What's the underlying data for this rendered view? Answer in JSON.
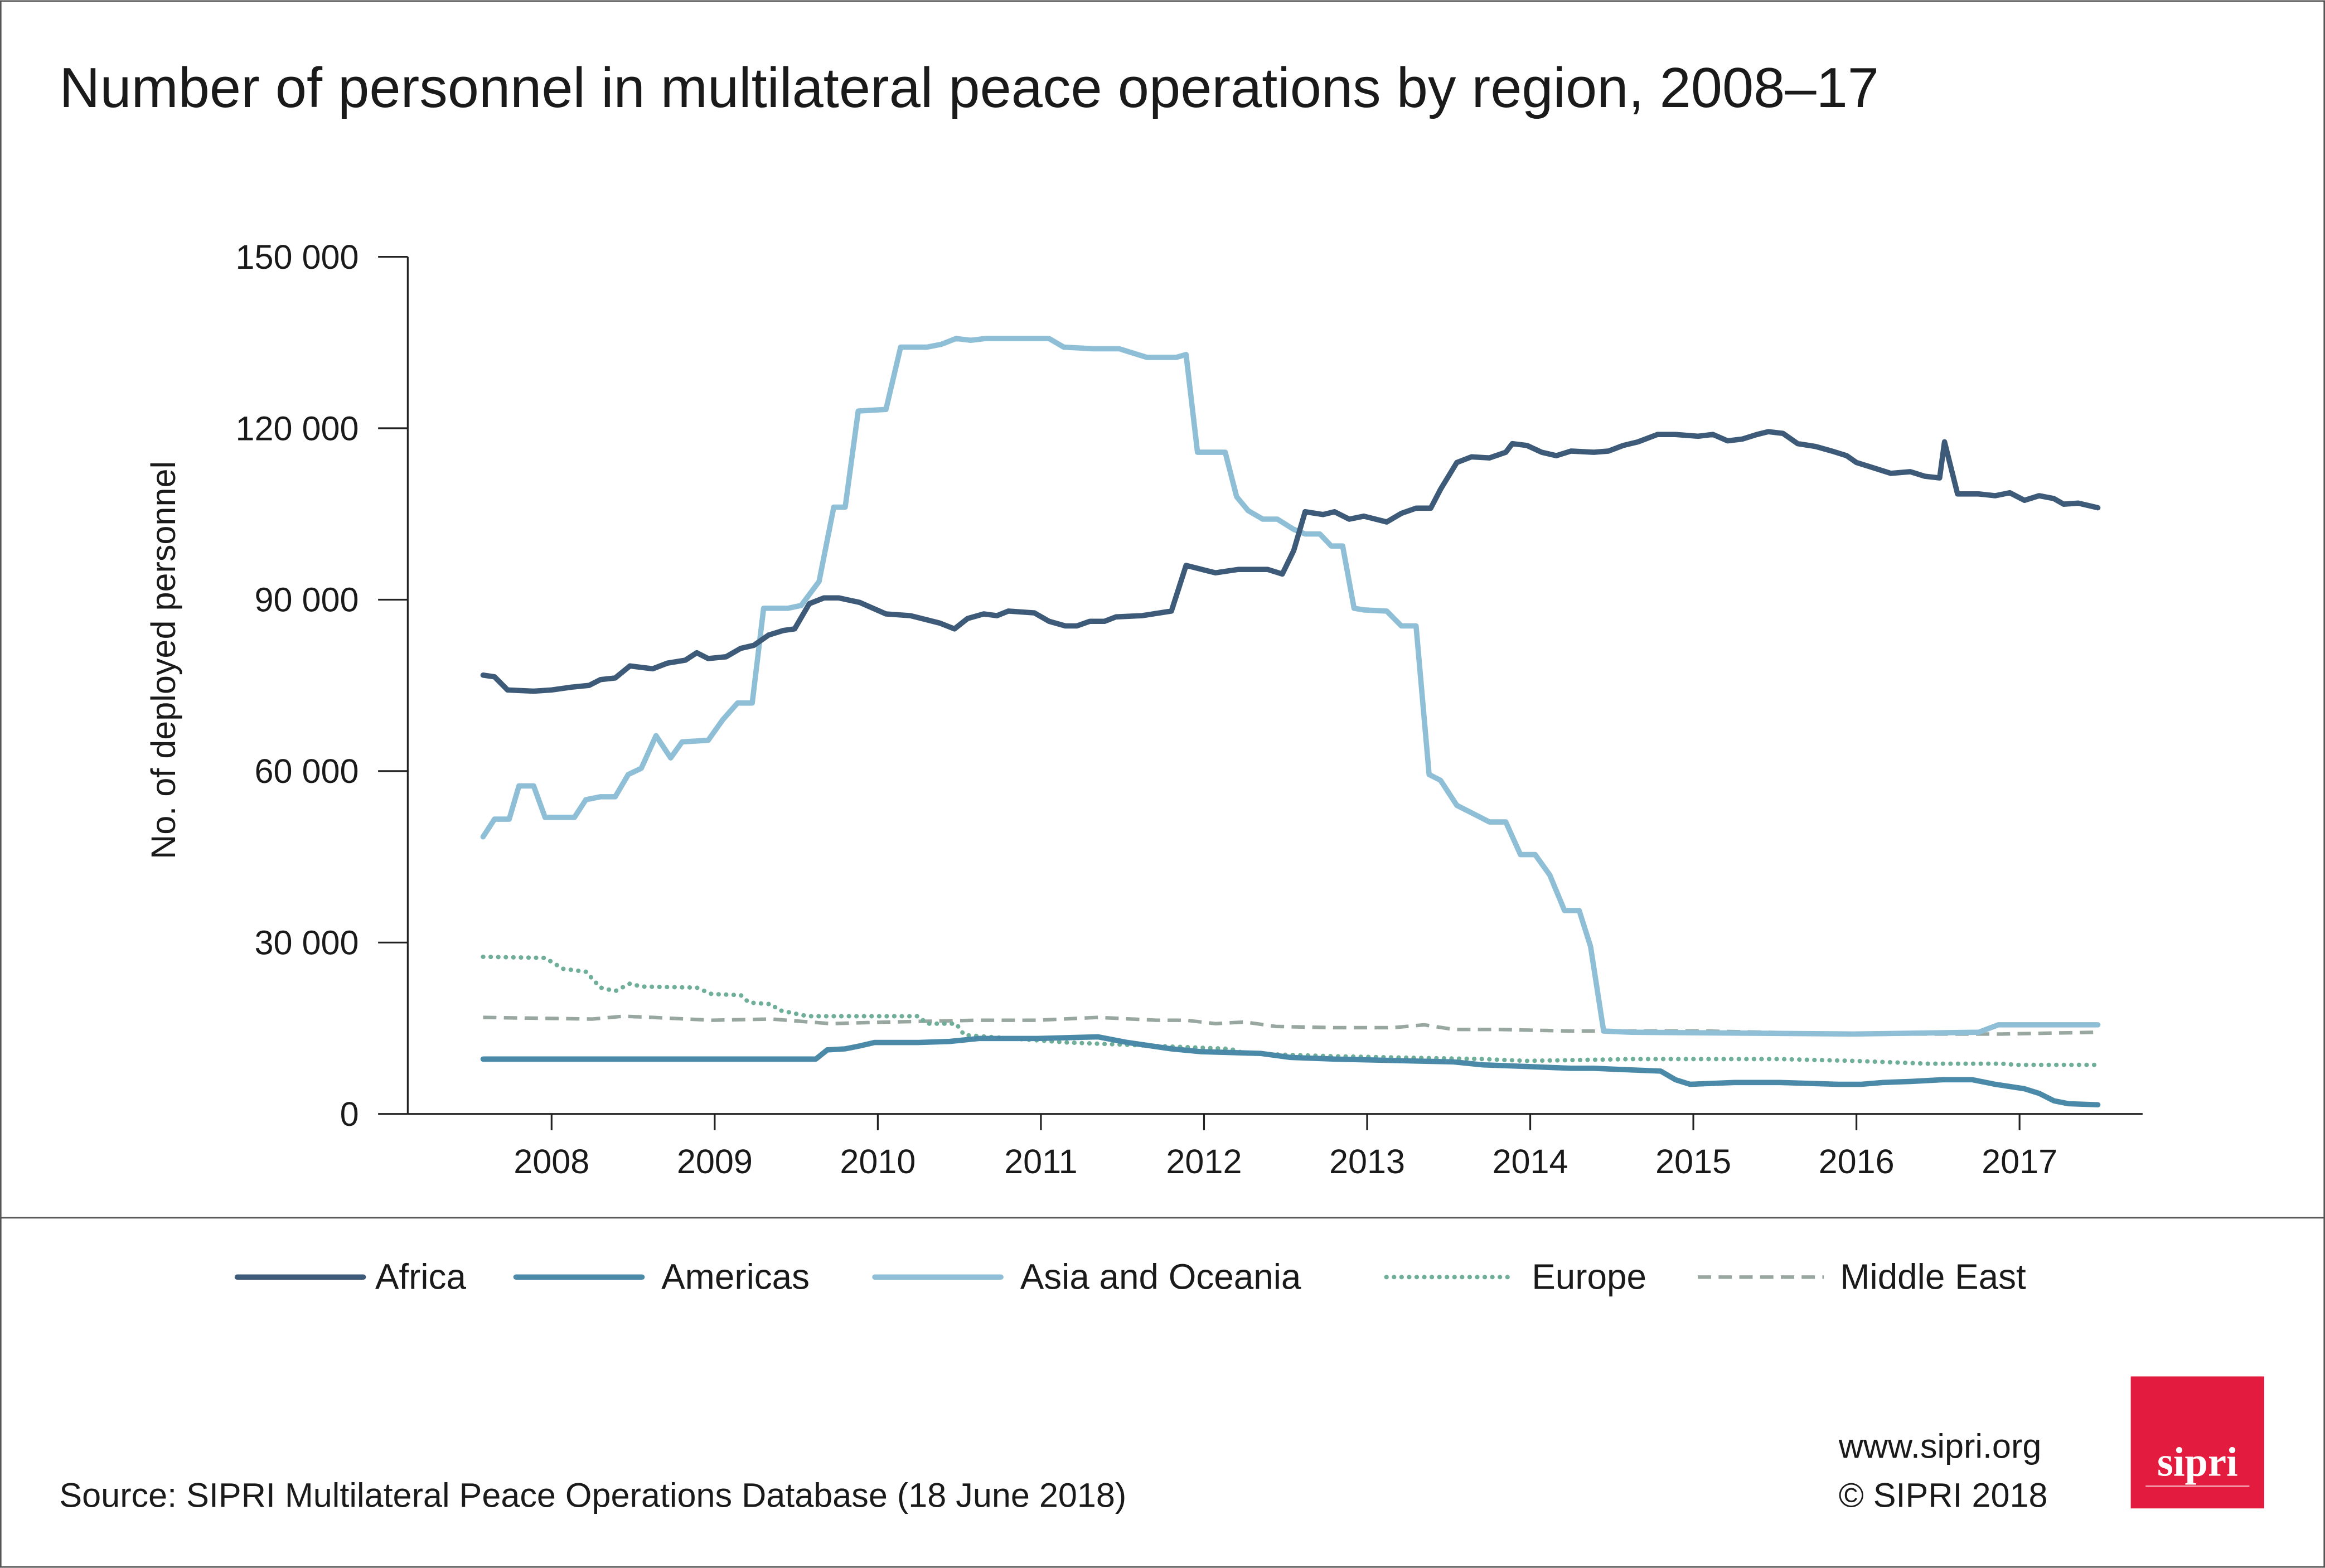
{
  "chart_data": {
    "type": "line",
    "title": "Number of personnel in multilateral peace operations by region, 2008–17",
    "xlabel": "",
    "ylabel": "No. of deployed personnel",
    "ylim": [
      0,
      150000
    ],
    "yticks": [
      0,
      30000,
      60000,
      90000,
      120000,
      150000
    ],
    "ytick_labels": [
      "0",
      "30 000",
      "60 000",
      "90 000",
      "120 000",
      "150 000"
    ],
    "xlim": [
      2007.55,
      2017.75
    ],
    "xticks": [
      2008,
      2009,
      2010,
      2011,
      2012,
      2013,
      2014,
      2015,
      2016,
      2017
    ],
    "xtick_labels": [
      "2008",
      "2009",
      "2010",
      "2011",
      "2012",
      "2013",
      "2014",
      "2015",
      "2016",
      "2017"
    ],
    "grid": false,
    "legend_placement": "bottom",
    "series": [
      {
        "name": "Africa",
        "color": "#3d5a78",
        "style": "solid",
        "points": [
          [
            2007.58,
            76800
          ],
          [
            2007.65,
            76500
          ],
          [
            2007.73,
            74200
          ],
          [
            2007.89,
            74000
          ],
          [
            2008.0,
            74200
          ],
          [
            2008.12,
            74700
          ],
          [
            2008.23,
            75000
          ],
          [
            2008.3,
            76000
          ],
          [
            2008.39,
            76300
          ],
          [
            2008.48,
            78400
          ],
          [
            2008.62,
            77900
          ],
          [
            2008.71,
            78900
          ],
          [
            2008.82,
            79400
          ],
          [
            2008.89,
            80700
          ],
          [
            2008.96,
            79700
          ],
          [
            2009.07,
            80000
          ],
          [
            2009.16,
            81500
          ],
          [
            2009.24,
            82000
          ],
          [
            2009.33,
            83800
          ],
          [
            2009.42,
            84600
          ],
          [
            2009.49,
            84900
          ],
          [
            2009.58,
            89300
          ],
          [
            2009.67,
            90300
          ],
          [
            2009.76,
            90300
          ],
          [
            2009.89,
            89500
          ],
          [
            2010.05,
            87500
          ],
          [
            2010.2,
            87200
          ],
          [
            2010.38,
            85900
          ],
          [
            2010.47,
            84900
          ],
          [
            2010.55,
            86700
          ],
          [
            2010.65,
            87500
          ],
          [
            2010.73,
            87200
          ],
          [
            2010.8,
            88000
          ],
          [
            2010.96,
            87700
          ],
          [
            2011.05,
            86200
          ],
          [
            2011.15,
            85400
          ],
          [
            2011.22,
            85400
          ],
          [
            2011.3,
            86200
          ],
          [
            2011.39,
            86200
          ],
          [
            2011.46,
            87000
          ],
          [
            2011.62,
            87200
          ],
          [
            2011.8,
            88000
          ],
          [
            2011.89,
            96000
          ],
          [
            2012.07,
            94700
          ],
          [
            2012.21,
            95300
          ],
          [
            2012.39,
            95300
          ],
          [
            2012.48,
            94500
          ],
          [
            2012.55,
            98600
          ],
          [
            2012.62,
            105400
          ],
          [
            2012.73,
            104900
          ],
          [
            2012.8,
            105400
          ],
          [
            2012.89,
            104100
          ],
          [
            2012.98,
            104600
          ],
          [
            2013.12,
            103600
          ],
          [
            2013.21,
            105100
          ],
          [
            2013.3,
            106000
          ],
          [
            2013.39,
            106000
          ],
          [
            2013.45,
            109300
          ],
          [
            2013.55,
            114000
          ],
          [
            2013.64,
            115000
          ],
          [
            2013.75,
            114800
          ],
          [
            2013.85,
            115800
          ],
          [
            2013.89,
            117300
          ],
          [
            2013.98,
            117000
          ],
          [
            2014.07,
            115800
          ],
          [
            2014.16,
            115200
          ],
          [
            2014.25,
            116000
          ],
          [
            2014.39,
            115800
          ],
          [
            2014.48,
            116000
          ],
          [
            2014.57,
            117000
          ],
          [
            2014.66,
            117600
          ],
          [
            2014.78,
            118900
          ],
          [
            2014.89,
            118900
          ],
          [
            2015.03,
            118600
          ],
          [
            2015.12,
            118900
          ],
          [
            2015.21,
            117800
          ],
          [
            2015.3,
            118100
          ],
          [
            2015.39,
            118900
          ],
          [
            2015.46,
            119400
          ],
          [
            2015.55,
            119100
          ],
          [
            2015.64,
            117300
          ],
          [
            2015.75,
            116800
          ],
          [
            2015.85,
            116000
          ],
          [
            2015.94,
            115200
          ],
          [
            2016.0,
            114000
          ],
          [
            2016.09,
            113200
          ],
          [
            2016.21,
            112100
          ],
          [
            2016.33,
            112400
          ],
          [
            2016.42,
            111600
          ],
          [
            2016.51,
            111300
          ],
          [
            2016.54,
            117600
          ],
          [
            2016.62,
            108500
          ],
          [
            2016.75,
            108500
          ],
          [
            2016.85,
            108200
          ],
          [
            2016.94,
            108700
          ],
          [
            2017.03,
            107400
          ],
          [
            2017.12,
            108200
          ],
          [
            2017.21,
            107700
          ],
          [
            2017.27,
            106700
          ],
          [
            2017.36,
            106900
          ],
          [
            2017.48,
            106100
          ]
        ]
      },
      {
        "name": "Americas",
        "color": "#4a8aa8",
        "style": "solid",
        "points": [
          [
            2007.58,
            9600
          ],
          [
            2009.62,
            9600
          ],
          [
            2009.69,
            11200
          ],
          [
            2009.8,
            11400
          ],
          [
            2009.89,
            11900
          ],
          [
            2009.98,
            12500
          ],
          [
            2010.07,
            12500
          ],
          [
            2010.25,
            12500
          ],
          [
            2010.44,
            12700
          ],
          [
            2010.62,
            13200
          ],
          [
            2010.98,
            13200
          ],
          [
            2011.35,
            13500
          ],
          [
            2011.53,
            12500
          ],
          [
            2011.8,
            11400
          ],
          [
            2011.98,
            10900
          ],
          [
            2012.35,
            10600
          ],
          [
            2012.53,
            9900
          ],
          [
            2012.8,
            9600
          ],
          [
            2013.25,
            9300
          ],
          [
            2013.53,
            9100
          ],
          [
            2013.71,
            8600
          ],
          [
            2013.98,
            8300
          ],
          [
            2014.25,
            8000
          ],
          [
            2014.39,
            8000
          ],
          [
            2014.53,
            7800
          ],
          [
            2014.8,
            7500
          ],
          [
            2014.89,
            6000
          ],
          [
            2014.98,
            5200
          ],
          [
            2015.25,
            5500
          ],
          [
            2015.53,
            5500
          ],
          [
            2015.89,
            5200
          ],
          [
            2016.03,
            5200
          ],
          [
            2016.16,
            5500
          ],
          [
            2016.35,
            5700
          ],
          [
            2016.53,
            6000
          ],
          [
            2016.71,
            6000
          ],
          [
            2016.85,
            5200
          ],
          [
            2017.03,
            4400
          ],
          [
            2017.12,
            3600
          ],
          [
            2017.21,
            2300
          ],
          [
            2017.3,
            1800
          ],
          [
            2017.48,
            1600
          ]
        ]
      },
      {
        "name": "Asia and Oceania",
        "color": "#8fbfd6",
        "style": "solid",
        "points": [
          [
            2007.58,
            48500
          ],
          [
            2007.65,
            51600
          ],
          [
            2007.74,
            51600
          ],
          [
            2007.8,
            57400
          ],
          [
            2007.89,
            57400
          ],
          [
            2007.96,
            51900
          ],
          [
            2008.14,
            51900
          ],
          [
            2008.21,
            55000
          ],
          [
            2008.3,
            55500
          ],
          [
            2008.39,
            55500
          ],
          [
            2008.47,
            59400
          ],
          [
            2008.55,
            60500
          ],
          [
            2008.64,
            66200
          ],
          [
            2008.73,
            62300
          ],
          [
            2008.8,
            65100
          ],
          [
            2008.96,
            65400
          ],
          [
            2009.05,
            69000
          ],
          [
            2009.14,
            71900
          ],
          [
            2009.23,
            71900
          ],
          [
            2009.3,
            88500
          ],
          [
            2009.45,
            88500
          ],
          [
            2009.53,
            89000
          ],
          [
            2009.64,
            93200
          ],
          [
            2009.73,
            106200
          ],
          [
            2009.8,
            106200
          ],
          [
            2009.88,
            123000
          ],
          [
            2010.05,
            123300
          ],
          [
            2010.14,
            134200
          ],
          [
            2010.3,
            134200
          ],
          [
            2010.39,
            134700
          ],
          [
            2010.48,
            135700
          ],
          [
            2010.57,
            135400
          ],
          [
            2010.66,
            135700
          ],
          [
            2010.98,
            135700
          ],
          [
            2011.05,
            135700
          ],
          [
            2011.14,
            134200
          ],
          [
            2011.32,
            133900
          ],
          [
            2011.48,
            133900
          ],
          [
            2011.57,
            133100
          ],
          [
            2011.65,
            132400
          ],
          [
            2011.83,
            132400
          ],
          [
            2011.89,
            132900
          ],
          [
            2011.96,
            115800
          ],
          [
            2012.13,
            115800
          ],
          [
            2012.2,
            108000
          ],
          [
            2012.27,
            105600
          ],
          [
            2012.36,
            104100
          ],
          [
            2012.45,
            104100
          ],
          [
            2012.55,
            102300
          ],
          [
            2012.62,
            101500
          ],
          [
            2012.71,
            101500
          ],
          [
            2012.78,
            99400
          ],
          [
            2012.85,
            99400
          ],
          [
            2012.92,
            88500
          ],
          [
            2012.98,
            88200
          ],
          [
            2013.12,
            88000
          ],
          [
            2013.21,
            85400
          ],
          [
            2013.3,
            85400
          ],
          [
            2013.38,
            59400
          ],
          [
            2013.45,
            58400
          ],
          [
            2013.55,
            54000
          ],
          [
            2013.64,
            52700
          ],
          [
            2013.75,
            51100
          ],
          [
            2013.85,
            51100
          ],
          [
            2013.94,
            45400
          ],
          [
            2014.03,
            45400
          ],
          [
            2014.12,
            41800
          ],
          [
            2014.21,
            35600
          ],
          [
            2014.3,
            35600
          ],
          [
            2014.37,
            29300
          ],
          [
            2014.45,
            14500
          ],
          [
            2014.62,
            14300
          ],
          [
            2015.98,
            14000
          ],
          [
            2016.75,
            14300
          ],
          [
            2016.87,
            15600
          ],
          [
            2017.48,
            15600
          ]
        ]
      },
      {
        "name": "Europe",
        "color": "#6fae98",
        "style": "dotted",
        "points": [
          [
            2007.58,
            27500
          ],
          [
            2007.96,
            27300
          ],
          [
            2008.07,
            25400
          ],
          [
            2008.21,
            24900
          ],
          [
            2008.3,
            22100
          ],
          [
            2008.39,
            21500
          ],
          [
            2008.48,
            22800
          ],
          [
            2008.55,
            22300
          ],
          [
            2008.89,
            22100
          ],
          [
            2008.98,
            21000
          ],
          [
            2009.16,
            20800
          ],
          [
            2009.21,
            19500
          ],
          [
            2009.35,
            19200
          ],
          [
            2009.39,
            18200
          ],
          [
            2009.57,
            17100
          ],
          [
            2010.25,
            17100
          ],
          [
            2010.3,
            15800
          ],
          [
            2010.48,
            15800
          ],
          [
            2010.53,
            13800
          ],
          [
            2011.16,
            12500
          ],
          [
            2012.16,
            11400
          ],
          [
            2012.25,
            10600
          ],
          [
            2012.8,
            10100
          ],
          [
            2013.71,
            9600
          ],
          [
            2013.98,
            9300
          ],
          [
            2014.62,
            9600
          ],
          [
            2015.53,
            9600
          ],
          [
            2015.98,
            9300
          ],
          [
            2016.44,
            8800
          ],
          [
            2016.89,
            8800
          ],
          [
            2016.98,
            8600
          ],
          [
            2017.48,
            8600
          ]
        ]
      },
      {
        "name": "Middle East",
        "color": "#98a8a0",
        "style": "dashed",
        "points": [
          [
            2007.58,
            16900
          ],
          [
            2008.25,
            16600
          ],
          [
            2008.44,
            17100
          ],
          [
            2008.62,
            16900
          ],
          [
            2008.98,
            16400
          ],
          [
            2009.35,
            16600
          ],
          [
            2009.71,
            15800
          ],
          [
            2010.07,
            16100
          ],
          [
            2010.62,
            16400
          ],
          [
            2010.98,
            16400
          ],
          [
            2011.35,
            16900
          ],
          [
            2011.71,
            16400
          ],
          [
            2011.89,
            16400
          ],
          [
            2012.07,
            15800
          ],
          [
            2012.25,
            16100
          ],
          [
            2012.44,
            15300
          ],
          [
            2012.8,
            15100
          ],
          [
            2013.16,
            15100
          ],
          [
            2013.35,
            15600
          ],
          [
            2013.53,
            14800
          ],
          [
            2013.8,
            14800
          ],
          [
            2014.25,
            14500
          ],
          [
            2015.07,
            14500
          ],
          [
            2015.98,
            14000
          ],
          [
            2016.89,
            14000
          ],
          [
            2017.48,
            14300
          ]
        ]
      }
    ]
  },
  "footer": {
    "source": "Source: SIPRI Multilateral Peace Operations Database (18 June 2018)",
    "website": "www.sipri.org",
    "copyright": "© SIPRI 2018",
    "logo_text": "sipri",
    "logo_color": "#e31b3f"
  }
}
